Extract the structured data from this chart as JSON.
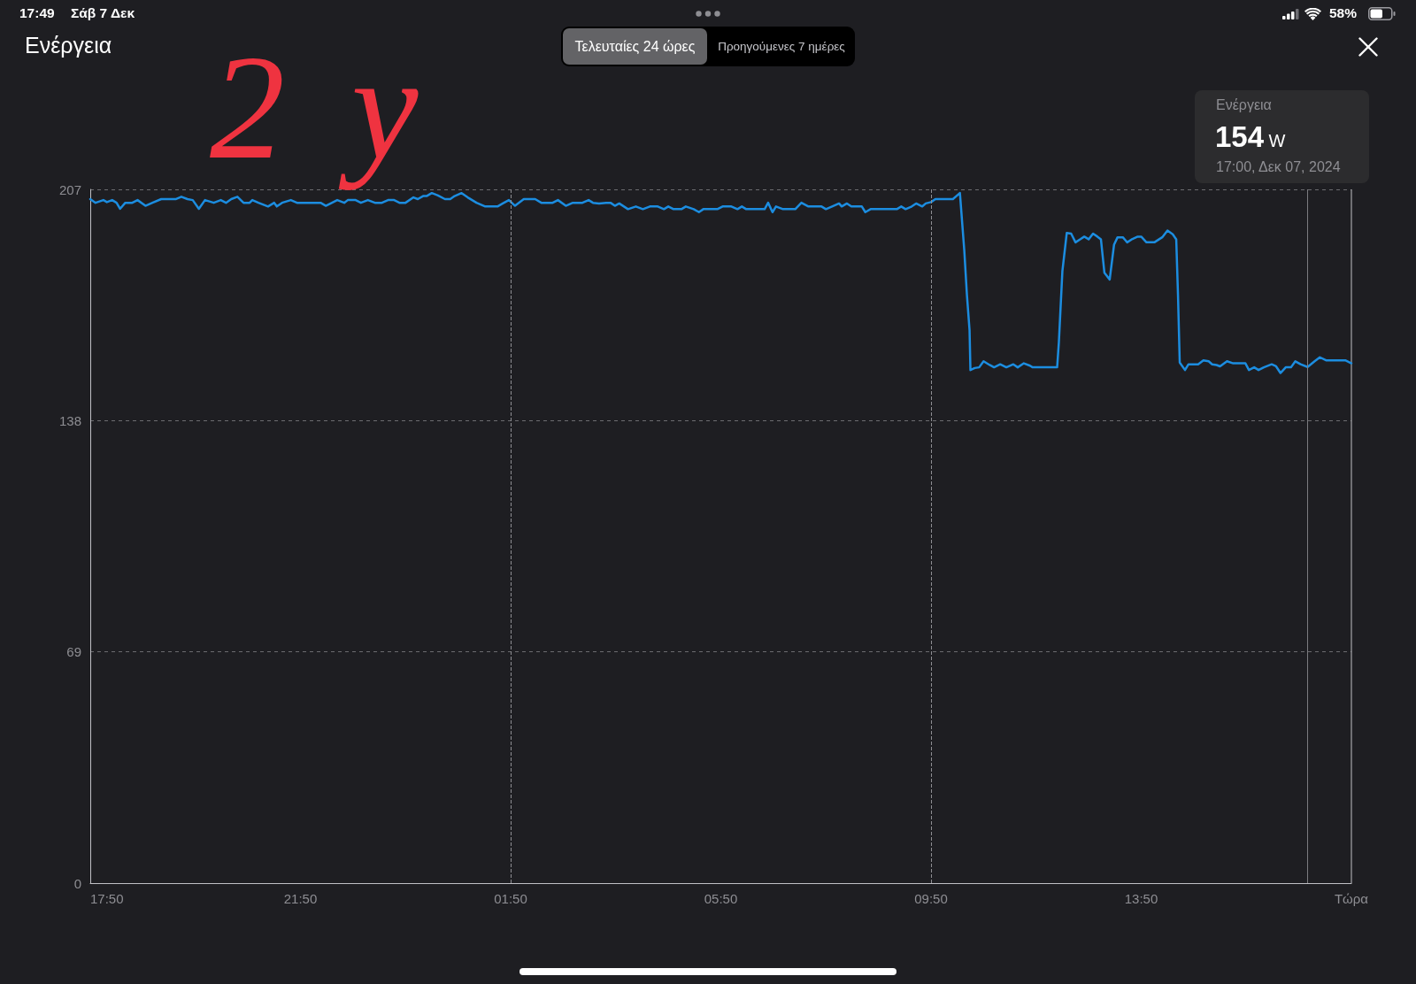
{
  "chart_data": {
    "type": "line",
    "title": "Ενέργεια",
    "x": [
      "2024-12-06T17:50",
      "2024-12-06T17:56",
      "2024-12-06T18:05",
      "2024-12-06T18:09",
      "2024-12-06T18:15",
      "2024-12-06T18:20",
      "2024-12-06T18:24",
      "2024-12-06T18:30",
      "2024-12-06T18:38",
      "2024-12-06T18:44",
      "2024-12-06T18:53",
      "2024-12-06T19:01",
      "2024-12-06T19:11",
      "2024-12-06T19:28",
      "2024-12-06T19:34",
      "2024-12-06T19:41",
      "2024-12-06T19:47",
      "2024-12-06T19:54",
      "2024-12-06T20:01",
      "2024-12-06T20:11",
      "2024-12-06T20:19",
      "2024-12-06T20:25",
      "2024-12-06T20:31",
      "2024-12-06T20:38",
      "2024-12-06T20:45",
      "2024-12-06T20:52",
      "2024-12-06T20:55",
      "2024-12-06T21:02",
      "2024-12-06T21:13",
      "2024-12-06T21:20",
      "2024-12-06T21:23",
      "2024-12-06T21:29",
      "2024-12-06T21:39",
      "2024-12-06T21:46",
      "2024-12-06T22:13",
      "2024-12-06T22:19",
      "2024-12-06T22:26",
      "2024-12-06T22:32",
      "2024-12-06T22:40",
      "2024-12-06T22:44",
      "2024-12-06T22:53",
      "2024-12-06T22:59",
      "2024-12-06T23:07",
      "2024-12-06T23:15",
      "2024-12-06T23:23",
      "2024-12-06T23:30",
      "2024-12-06T23:37",
      "2024-12-06T23:43",
      "2024-12-06T23:50",
      "2024-12-06T23:59",
      "2024-12-07T00:04",
      "2024-12-07T00:10",
      "2024-12-07T00:14",
      "2024-12-07T00:20",
      "2024-12-07T00:27",
      "2024-12-07T00:35",
      "2024-12-07T00:41",
      "2024-12-07T00:46",
      "2024-12-07T00:54",
      "2024-12-07T01:01",
      "2024-12-07T01:11",
      "2024-12-07T01:21",
      "2024-12-07T01:35",
      "2024-12-07T01:41",
      "2024-12-07T01:48",
      "2024-12-07T01:55",
      "2024-12-07T02:05",
      "2024-12-07T02:18",
      "2024-12-07T02:25",
      "2024-12-07T02:38",
      "2024-12-07T02:44",
      "2024-12-07T02:53",
      "2024-12-07T03:01",
      "2024-12-07T03:12",
      "2024-12-07T03:19",
      "2024-12-07T03:24",
      "2024-12-07T03:31",
      "2024-12-07T03:39",
      "2024-12-07T03:44",
      "2024-12-07T03:49",
      "2024-12-07T03:54",
      "2024-12-07T04:04",
      "2024-12-07T04:13",
      "2024-12-07T04:21",
      "2024-12-07T04:29",
      "2024-12-07T04:38",
      "2024-12-07T04:45",
      "2024-12-07T04:50",
      "2024-12-07T04:56",
      "2024-12-07T05:05",
      "2024-12-07T05:10",
      "2024-12-07T05:19",
      "2024-12-07T05:25",
      "2024-12-07T05:30",
      "2024-12-07T05:46",
      "2024-12-07T05:52",
      "2024-12-07T06:02",
      "2024-12-07T06:09",
      "2024-12-07T06:14",
      "2024-12-07T06:19",
      "2024-12-07T06:40",
      "2024-12-07T06:44",
      "2024-12-07T06:49",
      "2024-12-07T06:53",
      "2024-12-07T07:01",
      "2024-12-07T07:15",
      "2024-12-07T07:22",
      "2024-12-07T07:30",
      "2024-12-07T07:45",
      "2024-12-07T07:50",
      "2024-12-07T07:57",
      "2024-12-07T08:05",
      "2024-12-07T08:08",
      "2024-12-07T08:14",
      "2024-12-07T08:19",
      "2024-12-07T08:31",
      "2024-12-07T08:35",
      "2024-12-07T08:41",
      "2024-12-07T09:11",
      "2024-12-07T09:16",
      "2024-12-07T09:21",
      "2024-12-07T09:28",
      "2024-12-07T09:33",
      "2024-12-07T09:40",
      "2024-12-07T09:44",
      "2024-12-07T09:50",
      "2024-12-07T09:55",
      "2024-12-07T10:11",
      "2024-12-07T10:15",
      "2024-12-07T10:23",
      "2024-12-07T10:28",
      "2024-12-07T10:31",
      "2024-12-07T10:34",
      "2024-12-07T10:35",
      "2024-12-07T10:40",
      "2024-12-07T10:45",
      "2024-12-07T10:50",
      "2024-12-07T10:57",
      "2024-12-07T11:02",
      "2024-12-07T11:09",
      "2024-12-07T11:16",
      "2024-12-07T11:24",
      "2024-12-07T11:29",
      "2024-12-07T11:36",
      "2024-12-07T11:43",
      "2024-12-07T11:46",
      "2024-12-07T12:14",
      "2024-12-07T12:16",
      "2024-12-07T12:20",
      "2024-12-07T12:25",
      "2024-12-07T12:30",
      "2024-12-07T12:35",
      "2024-12-07T12:41",
      "2024-12-07T12:45",
      "2024-12-07T12:50",
      "2024-12-07T12:55",
      "2024-12-07T13:00",
      "2024-12-07T13:04",
      "2024-12-07T13:08",
      "2024-12-07T13:14",
      "2024-12-07T13:19",
      "2024-12-07T13:23",
      "2024-12-07T13:29",
      "2024-12-07T13:34",
      "2024-12-07T13:40",
      "2024-12-07T13:46",
      "2024-12-07T13:50",
      "2024-12-07T13:56",
      "2024-12-07T14:05",
      "2024-12-07T14:14",
      "2024-12-07T14:20",
      "2024-12-07T14:26",
      "2024-12-07T14:30",
      "2024-12-07T14:32",
      "2024-12-07T14:34",
      "2024-12-07T14:40",
      "2024-12-07T14:44",
      "2024-12-07T14:55",
      "2024-12-07T15:01",
      "2024-12-07T15:07",
      "2024-12-07T15:11",
      "2024-12-07T15:16",
      "2024-12-07T15:20",
      "2024-12-07T15:28",
      "2024-12-07T15:35",
      "2024-12-07T15:49",
      "2024-12-07T15:53",
      "2024-12-07T15:59",
      "2024-12-07T16:04",
      "2024-12-07T16:10",
      "2024-12-07T16:19",
      "2024-12-07T16:24",
      "2024-12-07T16:29",
      "2024-12-07T16:35",
      "2024-12-07T16:41",
      "2024-12-07T16:46",
      "2024-12-07T16:52",
      "2024-12-07T17:00",
      "2024-12-07T17:08",
      "2024-12-07T17:14",
      "2024-12-07T17:21",
      "2024-12-07T17:43",
      "2024-12-07T17:50"
    ],
    "values": [
      204.1,
      203.0,
      203.8,
      203.2,
      203.8,
      203.0,
      201.2,
      203.0,
      203.0,
      203.8,
      202.1,
      203.0,
      204.1,
      204.1,
      204.8,
      204.1,
      203.8,
      201.2,
      203.8,
      203.0,
      203.8,
      203.0,
      204.1,
      204.8,
      203.0,
      203.0,
      203.8,
      203.0,
      201.9,
      203.0,
      201.9,
      203.0,
      203.8,
      203.0,
      203.0,
      202.1,
      203.0,
      203.8,
      203.0,
      203.8,
      203.8,
      203.0,
      203.8,
      203.0,
      203.0,
      203.8,
      203.8,
      203.0,
      203.0,
      204.6,
      204.1,
      205.0,
      205.0,
      205.9,
      205.2,
      204.1,
      204.1,
      205.0,
      205.9,
      204.6,
      203.0,
      201.9,
      201.9,
      202.8,
      203.8,
      202.1,
      204.1,
      204.1,
      203.0,
      203.0,
      203.8,
      202.1,
      203.0,
      203.0,
      203.8,
      203.0,
      202.8,
      203.0,
      203.0,
      202.1,
      202.8,
      201.1,
      201.9,
      201.1,
      201.9,
      201.9,
      201.1,
      201.9,
      201.1,
      201.1,
      201.9,
      201.1,
      200.2,
      201.1,
      201.1,
      201.9,
      201.9,
      201.1,
      201.9,
      201.1,
      201.1,
      203.0,
      200.2,
      201.9,
      201.1,
      201.1,
      203.0,
      201.9,
      201.9,
      201.1,
      201.9,
      202.8,
      201.9,
      202.8,
      201.9,
      201.9,
      200.2,
      201.1,
      201.1,
      201.9,
      201.1,
      201.9,
      202.8,
      201.9,
      202.8,
      203.2,
      204.1,
      204.1,
      204.1,
      205.9,
      188.7,
      175.5,
      165.0,
      153.1,
      153.7,
      153.9,
      155.7,
      154.6,
      153.9,
      154.8,
      153.9,
      154.8,
      153.9,
      155.1,
      154.4,
      153.9,
      153.9,
      161.4,
      182.6,
      194.0,
      193.8,
      191.2,
      192.2,
      192.9,
      192.1,
      193.8,
      192.9,
      192.1,
      182.1,
      180.1,
      190.5,
      192.7,
      192.7,
      191.2,
      192.2,
      192.9,
      192.9,
      191.2,
      191.2,
      192.7,
      194.7,
      193.6,
      192.1,
      175.5,
      155.3,
      153.1,
      154.8,
      154.8,
      156.0,
      155.7,
      154.8,
      154.6,
      154.2,
      155.7,
      155.1,
      155.1,
      153.1,
      153.9,
      153.1,
      153.9,
      154.8,
      154.2,
      152.2,
      153.9,
      153.9,
      155.7,
      154.8,
      154.0,
      155.7,
      156.9,
      156.0,
      156.0,
      155.1
    ],
    "color": "#1c8de0",
    "marker": "none",
    "line_style": "solid",
    "xlim": [
      "2024-12-06T17:50",
      "2024-12-07T17:50"
    ],
    "xticks": [
      {
        "value": "2024-12-06T17:50",
        "label": "17:50"
      },
      {
        "value": "2024-12-06T21:50",
        "label": "21:50"
      },
      {
        "value": "2024-12-07T01:50",
        "label": "01:50"
      },
      {
        "value": "2024-12-07T05:50",
        "label": "05:50"
      },
      {
        "value": "2024-12-07T09:50",
        "label": "09:50"
      },
      {
        "value": "2024-12-07T13:50",
        "label": "13:50"
      },
      {
        "value": "2024-12-07T17:50",
        "label": "Τώρα"
      }
    ],
    "ylim": [
      0,
      207
    ],
    "yticks": [
      0,
      69,
      138,
      207
    ],
    "grid": "y",
    "ref_lines": [
      {
        "axis": "x",
        "value": "2024-12-07T01:50",
        "label": null,
        "color": "#8e8e93",
        "line_style": "dashed"
      },
      {
        "axis": "x",
        "value": "2024-12-07T09:50",
        "label": null,
        "color": "#8e8e93",
        "line_style": "dashed"
      },
      {
        "axis": "x",
        "value": "2024-12-07T17:00",
        "label": null,
        "color": "#7c7c80",
        "line_style": "solid"
      }
    ],
    "annotations": [
      "17:49",
      "Σάβ 7 Δεκ",
      "58%",
      "Τελευταίες 24 ώρες",
      "Προηγούμενες 7 ημέρες",
      "Ενέργεια",
      "154 W",
      "17:00, Δεκ 07, 2024",
      "2y"
    ]
  }
}
